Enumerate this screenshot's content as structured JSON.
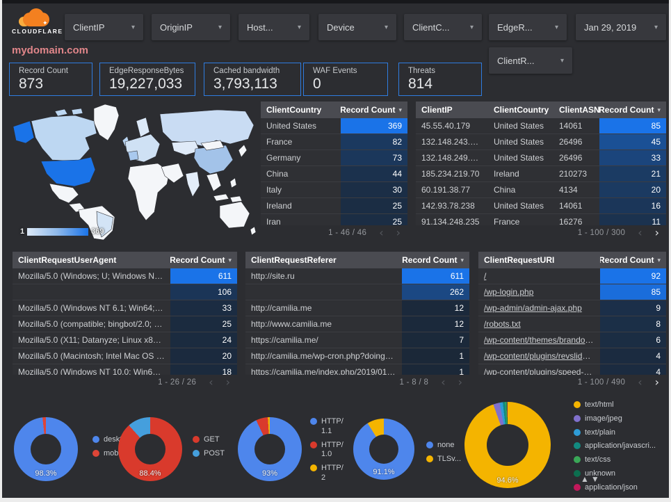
{
  "brand": {
    "name": "CLOUDFLARE",
    "cloud_color": "#f38020"
  },
  "icons": {
    "caret_down": "▾",
    "chevron_left": "‹",
    "chevron_right": "›",
    "sort_up": "▲",
    "sort_down": "▼",
    "spark": "✦"
  },
  "colors": {
    "accent_blue": "#1a73e8",
    "heat_base": "#1b2838",
    "card_border": "#2f7de1",
    "title_pink": "#e1868a"
  },
  "filters": [
    {
      "label": "ClientIP"
    },
    {
      "label": "OriginIP"
    },
    {
      "label": "Host..."
    },
    {
      "label": "Device"
    },
    {
      "label": "ClientC..."
    },
    {
      "label": "EdgeR..."
    }
  ],
  "date_filter": {
    "label": "Jan 29, 2019"
  },
  "filter_row2": {
    "label": "ClientR..."
  },
  "site_title": "mydomain.com",
  "scorecards": [
    {
      "label": "Record Count",
      "value": "873"
    },
    {
      "label": "EdgeResponseBytes",
      "value": "19,227,033"
    },
    {
      "label": "Cached bandwidth",
      "value": "3,793,113"
    },
    {
      "label": "WAF Events",
      "value": "0"
    },
    {
      "label": "Threats",
      "value": "814"
    }
  ],
  "map": {
    "legend_min": "1",
    "legend_max": "369",
    "country_fills": {
      "usa": "#1a73e8",
      "canada": "#bdd7f2",
      "greenland": "#f4f6f9",
      "russia": "#c9dcf3",
      "kazakh": "#dfeaf8",
      "europe": "#cfe1f4",
      "scand": "#dce9f8",
      "uk": "#b9d4f1",
      "france": "#a9c9ee",
      "china": "#a3c3e9",
      "mongolia": "#f4f6f9",
      "india": "#e3edf9",
      "mexico": "#f4f6f9",
      "samerica": "#f4f6f9",
      "brazil": "#d3e4f6",
      "africa": "#f4f6f9",
      "mideast": "#f4f6f9",
      "australia": "#f4f6f9",
      "default": "#f4f6f9"
    }
  },
  "tables": {
    "client_country": {
      "columns": [
        {
          "label": "ClientCountry",
          "align": "left"
        },
        {
          "label": "Record Count",
          "align": "right",
          "sort": true,
          "heat": true
        }
      ],
      "max": 369,
      "rows": [
        [
          "United States",
          369
        ],
        [
          "France",
          82
        ],
        [
          "Germany",
          73
        ],
        [
          "China",
          44
        ],
        [
          "Italy",
          30
        ],
        [
          "Ireland",
          25
        ],
        [
          "Iran",
          25
        ]
      ],
      "footer": {
        "range": "1 - 46 / 46",
        "prev": false,
        "next": false
      }
    },
    "client_ip": {
      "columns": [
        {
          "label": "ClientIP",
          "align": "left"
        },
        {
          "label": "ClientCountry",
          "align": "left"
        },
        {
          "label": "ClientASN",
          "align": "left"
        },
        {
          "label": "Record Count",
          "align": "right",
          "sort": true,
          "heat": true
        }
      ],
      "max": 85,
      "rows": [
        [
          "45.55.40.179",
          "United States",
          "14061",
          85
        ],
        [
          "132.148.243.238",
          "United States",
          "26496",
          45
        ],
        [
          "132.148.249.210",
          "United States",
          "26496",
          33
        ],
        [
          "185.234.219.70",
          "Ireland",
          "210273",
          21
        ],
        [
          "60.191.38.77",
          "China",
          "4134",
          20
        ],
        [
          "142.93.78.238",
          "United States",
          "14061",
          16
        ],
        [
          "91.134.248.235",
          "France",
          "16276",
          11
        ]
      ],
      "footer": {
        "range": "1 - 100 / 300",
        "prev": false,
        "next": true
      }
    },
    "user_agent": {
      "columns": [
        {
          "label": "ClientRequestUserAgent",
          "align": "left"
        },
        {
          "label": "Record Count",
          "align": "right",
          "sort": true,
          "heat": true
        }
      ],
      "max": 611,
      "rows": [
        [
          "Mozilla/5.0 (Windows; U; Windows NT 5.1; en-U...",
          611
        ],
        [
          "",
          106
        ],
        [
          "Mozilla/5.0 (Windows NT 6.1; Win64; x64; rv:64...",
          33
        ],
        [
          "Mozilla/5.0 (compatible; bingbot/2.0; +http://w...",
          25
        ],
        [
          "Mozilla/5.0 (X11; Datanyze; Linux x86_64) Appl...",
          24
        ],
        [
          "Mozilla/5.0 (Macintosh; Intel Mac OS X 10.11; r...",
          20
        ],
        [
          "Mozilla/5.0 (Windows NT 10.0; Win64; x64) App...",
          18
        ]
      ],
      "footer": {
        "range": "1 - 26 / 26",
        "prev": false,
        "next": false
      }
    },
    "referer": {
      "columns": [
        {
          "label": "ClientRequestReferer",
          "align": "left"
        },
        {
          "label": "Record Count",
          "align": "right",
          "sort": true,
          "heat": true
        }
      ],
      "max": 611,
      "rows": [
        [
          "http://site.ru",
          611
        ],
        [
          "",
          262
        ],
        [
          "http://camilia.me",
          12
        ],
        [
          "http://www.camilia.me",
          12
        ],
        [
          "https://camilia.me/",
          7
        ],
        [
          "http://camilia.me/wp-cron.php?doing_wp_cron...",
          1
        ],
        [
          "https://camilia.me/index.php/2019/01/26/stor...",
          1
        ]
      ],
      "footer": {
        "range": "1 - 8 / 8",
        "prev": false,
        "next": false
      }
    },
    "uri": {
      "columns": [
        {
          "label": "ClientRequestURI",
          "align": "left",
          "link": true
        },
        {
          "label": "Record Count",
          "align": "right",
          "sort": true,
          "heat": true
        }
      ],
      "max": 92,
      "rows": [
        [
          "/",
          92
        ],
        [
          "/wp-login.php",
          85
        ],
        [
          "/wp-admin/admin-ajax.php",
          9
        ],
        [
          "/robots.txt",
          8
        ],
        [
          "/wp-content/themes/brandon/plu...",
          6
        ],
        [
          "/wp-content/plugins/revslider/rs-p...",
          4
        ],
        [
          "/wp-content/plugins/speed-booste...",
          4
        ]
      ],
      "footer": {
        "range": "1 - 100 / 490",
        "prev": false,
        "next": true
      }
    }
  },
  "chart_data": [
    {
      "type": "pie",
      "name": "device-type-donut",
      "center_label": "98.3%",
      "slices": [
        {
          "name": "deskt...",
          "value": 98.3,
          "color": "#4e86ec"
        },
        {
          "name": "mobile",
          "value": 1.7,
          "color": "#de4537"
        }
      ]
    },
    {
      "type": "pie",
      "name": "http-method-donut",
      "center_label": "88.4%",
      "slices": [
        {
          "name": "GET",
          "value": 88.4,
          "color": "#d93a2c"
        },
        {
          "name": "POST",
          "value": 11.6,
          "color": "#459fdd"
        }
      ]
    },
    {
      "type": "pie",
      "name": "http-version-donut",
      "center_label": "93%",
      "slices": [
        {
          "name": "HTTP/1.1",
          "value": 93,
          "color": "#4e86ec"
        },
        {
          "name": "HTTP/1.0",
          "value": 6,
          "color": "#d93a2c"
        },
        {
          "name": "HTTP/2",
          "value": 1,
          "color": "#f4b400"
        }
      ]
    },
    {
      "type": "pie",
      "name": "tls-version-donut",
      "center_label": "91.1%",
      "slices": [
        {
          "name": "none",
          "value": 91.1,
          "color": "#4e86ec"
        },
        {
          "name": "TLSv...",
          "value": 8.9,
          "color": "#f4b400"
        }
      ]
    },
    {
      "type": "pie",
      "name": "content-type-donut",
      "center_label": "94.6%",
      "slices": [
        {
          "name": "text/html",
          "value": 94.6,
          "color": "#f4b400"
        },
        {
          "name": "image/jpeg",
          "value": 2.4,
          "color": "#8070cc"
        },
        {
          "name": "text/plain",
          "value": 1.2,
          "color": "#2e9bd6"
        },
        {
          "name": "application/javascri...",
          "value": 0.9,
          "color": "#128a80"
        },
        {
          "name": "text/css",
          "value": 0.5,
          "color": "#3aa757"
        },
        {
          "name": "unknown",
          "value": 0.3,
          "color": "#0c6e4f"
        },
        {
          "name": "application/json",
          "value": 0.1,
          "color": "#c2185b"
        }
      ]
    }
  ]
}
